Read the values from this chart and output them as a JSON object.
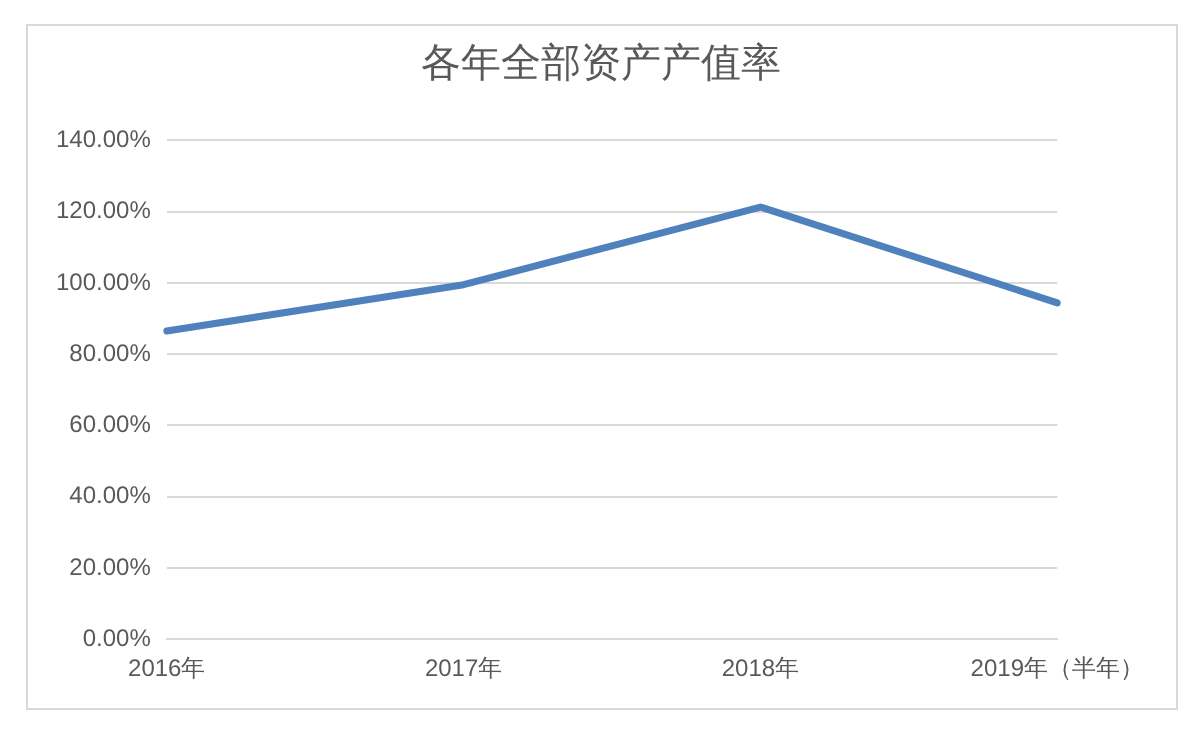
{
  "chart_data": {
    "type": "line",
    "title": "各年全部资产产值率",
    "categories": [
      "2016年",
      "2017年",
      "2018年",
      "2019年（半年）"
    ],
    "series": [
      {
        "color": "#4f81bd",
        "values": [
          86.5,
          99.5,
          121.3,
          94.4
        ]
      }
    ],
    "ylim": [
      0,
      140
    ],
    "yticks": [
      {
        "value": 0,
        "label": "0.00%"
      },
      {
        "value": 20,
        "label": "20.00%"
      },
      {
        "value": 40,
        "label": "40.00%"
      },
      {
        "value": 60,
        "label": "60.00%"
      },
      {
        "value": 80,
        "label": "80.00%"
      },
      {
        "value": 100,
        "label": "100.00%"
      },
      {
        "value": 120,
        "label": "120.00%"
      },
      {
        "value": 140,
        "label": "140.00%"
      }
    ],
    "grid": "y",
    "legend": false,
    "marker": "none",
    "line_style": "solid"
  }
}
